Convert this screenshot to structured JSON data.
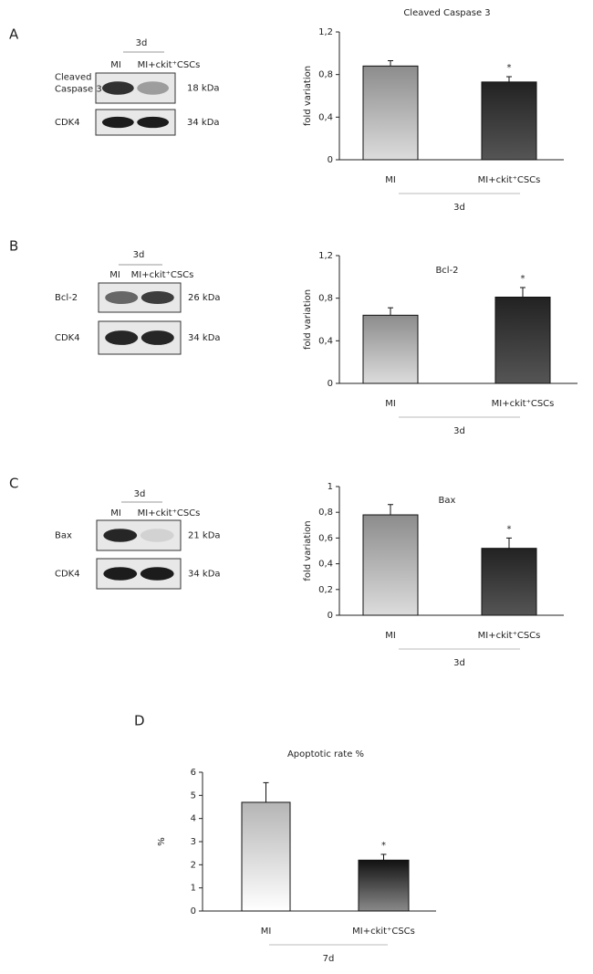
{
  "panels": [
    {
      "letter": "A",
      "blot": {
        "timepoint": "3d",
        "lanes": [
          "MI",
          "MI+ckit⁺CSCs"
        ],
        "rows": [
          {
            "label": "Cleaved Caspase 3",
            "size": "18 kDa"
          },
          {
            "label": "CDK4",
            "size": "34 kDa"
          }
        ]
      }
    },
    {
      "letter": "B",
      "blot": {
        "timepoint": "3d",
        "lanes": [
          "MI",
          "MI+ckit⁺CSCs"
        ],
        "rows": [
          {
            "label": "Bcl-2",
            "size": "26 kDa"
          },
          {
            "label": "CDK4",
            "size": "34 kDa"
          }
        ]
      }
    },
    {
      "letter": "C",
      "blot": {
        "timepoint": "3d",
        "lanes": [
          "MI",
          "MI+ckit⁺CSCs"
        ],
        "rows": [
          {
            "label": "Bax",
            "size": "21 kDa"
          },
          {
            "label": "CDK4",
            "size": "34 kDa"
          }
        ]
      }
    },
    {
      "letter": "D"
    }
  ],
  "chart_data": [
    {
      "type": "bar",
      "title": "Cleaved Caspase 3",
      "y_label": "fold variation",
      "group_label": "3d",
      "categories": [
        "MI",
        "MI+ckit⁺CSCs"
      ],
      "values": [
        0.88,
        0.73
      ],
      "errors": [
        0.05,
        0.05
      ],
      "value_annotations": [
        null,
        "*"
      ],
      "colors": [
        [
          "#8c8c8c",
          "#dcdcdc"
        ],
        [
          "#222222",
          "#555555"
        ]
      ],
      "ylim": [
        0,
        1.2
      ],
      "yticks": [
        0,
        {
          "value": 0.4,
          "label": "0,4"
        },
        {
          "value": 0.8,
          "label": "0,8"
        },
        {
          "value": 1.2,
          "label": "1,2"
        }
      ]
    },
    {
      "type": "bar",
      "title": "Bcl-2",
      "y_label": "fold variation",
      "group_label": "3d",
      "categories": [
        "MI",
        "MI+ckit⁺CSCs"
      ],
      "values": [
        0.64,
        0.81
      ],
      "errors": [
        0.07,
        0.09
      ],
      "value_annotations": [
        null,
        "*"
      ],
      "colors": [
        [
          "#8c8c8c",
          "#dcdcdc"
        ],
        [
          "#222222",
          "#555555"
        ]
      ],
      "ylim": [
        0,
        1.2
      ],
      "yticks": [
        0,
        {
          "value": 0.4,
          "label": "0,4"
        },
        {
          "value": 0.8,
          "label": "0,8"
        },
        {
          "value": 1.2,
          "label": "1,2"
        }
      ]
    },
    {
      "type": "bar",
      "title": "Bax",
      "y_label": "fold variation",
      "group_label": "3d",
      "categories": [
        "MI",
        "MI+ckit⁺CSCs"
      ],
      "values": [
        0.78,
        0.52
      ],
      "errors": [
        0.08,
        0.08
      ],
      "value_annotations": [
        null,
        "*"
      ],
      "colors": [
        [
          "#8c8c8c",
          "#dcdcdc"
        ],
        [
          "#222222",
          "#555555"
        ]
      ],
      "ylim": [
        0,
        1
      ],
      "yticks": [
        0,
        {
          "value": 0.2,
          "label": "0,2"
        },
        {
          "value": 0.4,
          "label": "0,4"
        },
        {
          "value": 0.6,
          "label": "0,6"
        },
        {
          "value": 0.8,
          "label": "0,8"
        },
        1
      ]
    },
    {
      "type": "bar",
      "title": "Apoptotic rate %",
      "y_label": "%",
      "group_label": "7d",
      "categories": [
        "MI",
        "MI+ckit⁺CSCs"
      ],
      "values": [
        4.7,
        2.2
      ],
      "errors": [
        0.85,
        0.25
      ],
      "value_annotations": [
        null,
        "*"
      ],
      "colors": [
        [
          "#b5b5b5",
          "#ffffff"
        ],
        [
          "#111111",
          "#8a8a8a"
        ]
      ],
      "ylim": [
        0,
        6
      ],
      "yticks": [
        0,
        1,
        2,
        3,
        4,
        5,
        6
      ]
    }
  ]
}
